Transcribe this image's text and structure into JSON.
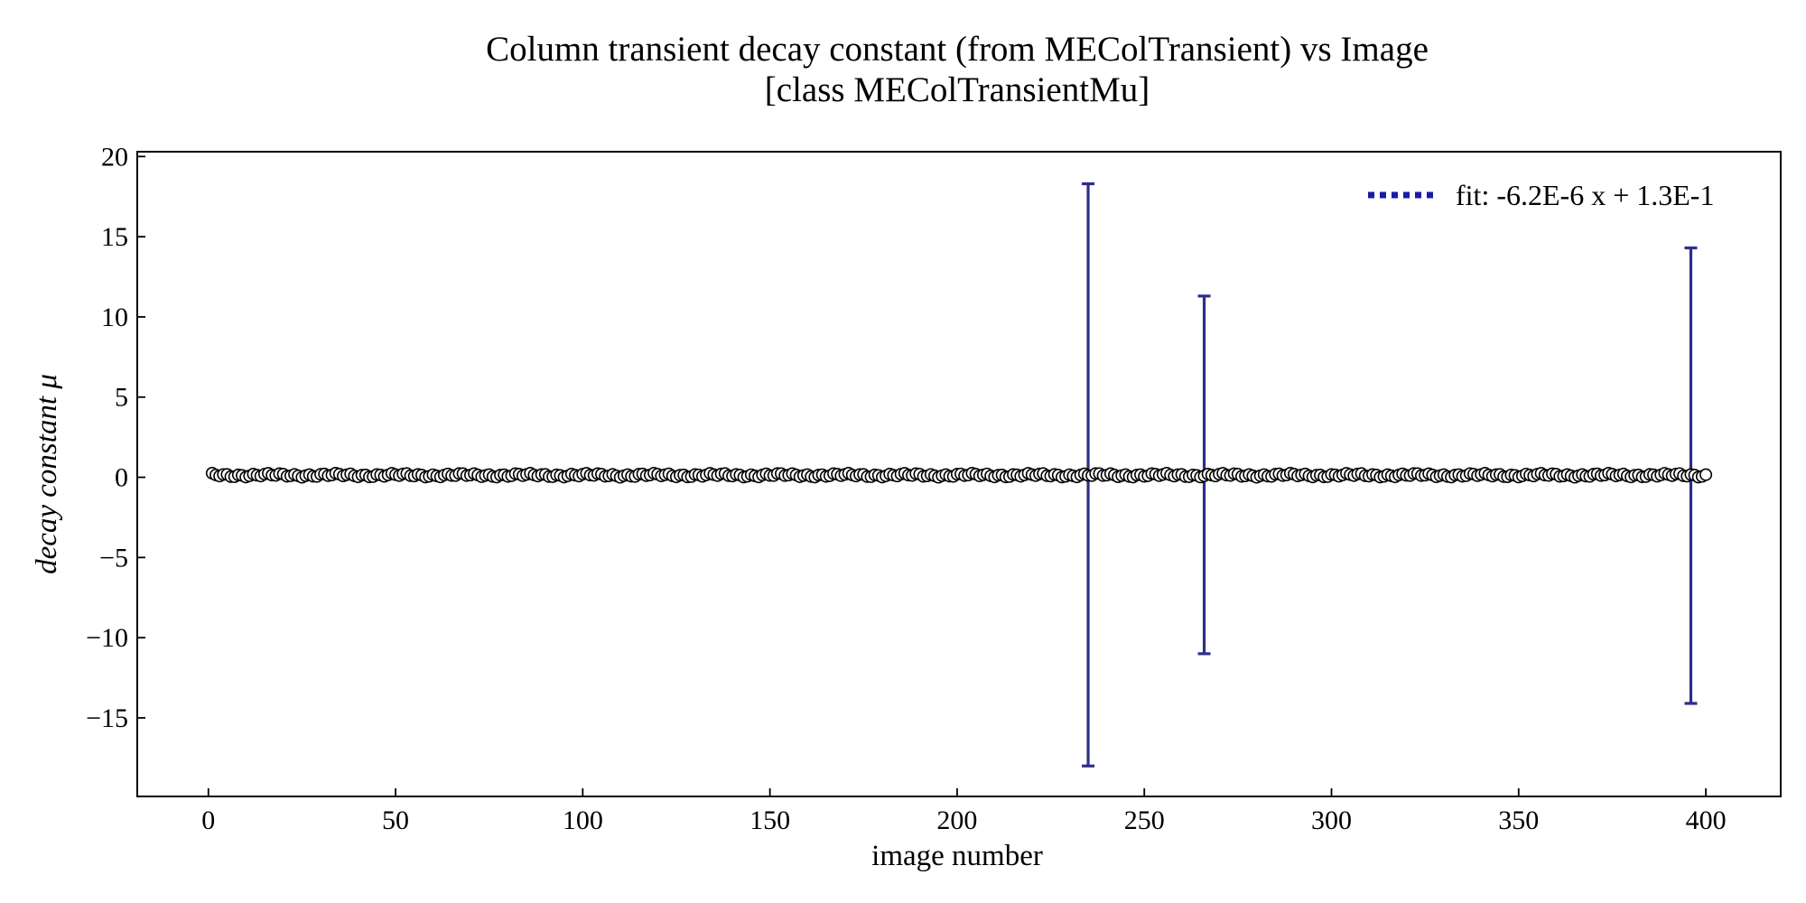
{
  "chart_data": {
    "type": "scatter",
    "title": "Column transient decay constant (from MEColTransient) vs Image",
    "subtitle": "[class MEColTransientMu]",
    "xlabel": "image number",
    "ylabel": "decay constant μ",
    "xlim": [
      -19,
      420
    ],
    "ylim": [
      -19.9,
      20.3
    ],
    "xticks": [
      0,
      50,
      100,
      150,
      200,
      250,
      300,
      350,
      400
    ],
    "yticks": [
      -15,
      -10,
      -5,
      0,
      5,
      10,
      15,
      20
    ],
    "ytick_labels": [
      "−15",
      "−10",
      "−5",
      "0",
      "5",
      "10",
      "15",
      "20"
    ],
    "tick_direction": "in",
    "grid": false,
    "legend_position": "top-right",
    "series": [
      {
        "kind": "points",
        "x_range": [
          1,
          400
        ],
        "y_approx": 0.13,
        "marker": "open-circle",
        "color": "#000000",
        "fill": "#ffffff"
      },
      {
        "name": "fit: -6.2E-6 x + 1.3E-1",
        "kind": "fit-line",
        "slope": -6.2e-06,
        "intercept": 0.13,
        "style": "dotted",
        "color": "#1a1aaa"
      }
    ],
    "error_bars": [
      {
        "x": 235,
        "y": 0.15,
        "ylow": -18.0,
        "yhigh": 18.3
      },
      {
        "x": 266,
        "y": 0.13,
        "ylow": -11.0,
        "yhigh": 11.3
      },
      {
        "x": 396,
        "y": 0.13,
        "ylow": -14.1,
        "yhigh": 14.3
      }
    ],
    "error_bar_color": "#2e2e8a"
  }
}
